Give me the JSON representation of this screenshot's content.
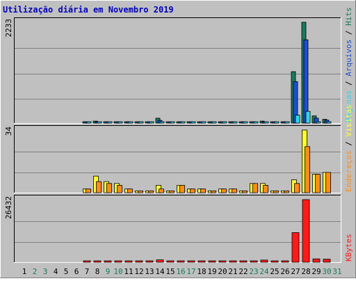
{
  "chart_data": {
    "type": "bar",
    "title": "Utilização diária em Novembro 2019",
    "categories": [
      "1",
      "2",
      "3",
      "4",
      "5",
      "6",
      "7",
      "8",
      "9",
      "10",
      "11",
      "12",
      "13",
      "14",
      "15",
      "16",
      "17",
      "18",
      "19",
      "20",
      "21",
      "22",
      "23",
      "24",
      "25",
      "26",
      "27",
      "28",
      "29",
      "30",
      "31"
    ],
    "weekend_days": [
      2,
      3,
      9,
      10,
      16,
      17,
      23,
      24,
      30,
      31
    ],
    "colors": {
      "background": "#c0c0c0",
      "title": "#0000c0",
      "hits": "#1a7a5e",
      "files": "#1a4fd6",
      "pages": "#33d4e8",
      "visits": "#ffff33",
      "sites": "#ff8c1a",
      "kbytes": "#ff1a1a",
      "weekend_label": "#1a7a5e",
      "weekday_label": "#000000"
    },
    "panels": [
      {
        "id": "top",
        "ymax_label": "2233",
        "ymax": 2233,
        "legend": [
          {
            "text": "Hits",
            "color": "#1a7a5e"
          },
          {
            "text": "Arquivos",
            "color": "#1a4fd6"
          },
          {
            "text": "Páginas",
            "color": "#33d4e8"
          }
        ],
        "series": [
          {
            "name": "Hits",
            "color": "#1a7a5e",
            "values": [
              0,
              0,
              0,
              0,
              0,
              0,
              12,
              45,
              5,
              5,
              5,
              5,
              5,
              110,
              5,
              5,
              5,
              20,
              5,
              5,
              5,
              5,
              5,
              45,
              5,
              5,
              1140,
              2233,
              160,
              85,
              0
            ]
          },
          {
            "name": "Arquivos",
            "color": "#1a4fd6",
            "values": [
              0,
              0,
              0,
              0,
              0,
              0,
              8,
              30,
              3,
              3,
              3,
              3,
              3,
              60,
              3,
              3,
              3,
              12,
              3,
              3,
              3,
              3,
              3,
              30,
              3,
              3,
              920,
              1845,
              110,
              65,
              0
            ]
          },
          {
            "name": "Páginas",
            "color": "#33d4e8",
            "values": [
              0,
              0,
              0,
              0,
              0,
              0,
              2,
              10,
              1,
              1,
              1,
              1,
              1,
              12,
              1,
              1,
              1,
              3,
              1,
              1,
              1,
              1,
              1,
              8,
              1,
              1,
              175,
              260,
              30,
              20,
              0
            ]
          }
        ]
      },
      {
        "id": "middle",
        "ymax_label": "34",
        "ymax": 34,
        "legend": [
          {
            "text": "Visitas",
            "color": "#ffff33"
          },
          {
            "text": "Endereços",
            "color": "#ff8c1a"
          }
        ],
        "series": [
          {
            "name": "Visitas",
            "color": "#ffff33",
            "values": [
              0,
              0,
              0,
              0,
              0,
              0,
              2,
              9,
              6,
              5,
              2,
              1,
              1,
              4,
              1,
              4,
              2,
              2,
              1,
              2,
              2,
              1,
              5,
              5,
              1,
              1,
              7,
              34,
              10,
              11,
              0
            ]
          },
          {
            "name": "Endereços",
            "color": "#ff8c1a",
            "values": [
              0,
              0,
              0,
              0,
              0,
              0,
              2,
              6,
              5,
              4,
              2,
              1,
              1,
              2,
              1,
              4,
              2,
              2,
              1,
              2,
              2,
              1,
              5,
              4,
              1,
              1,
              5,
              25,
              10,
              11,
              0
            ]
          }
        ]
      },
      {
        "id": "bottom",
        "ymax_label": "26432",
        "ymax": 26432,
        "legend": [
          {
            "text": "KBytes",
            "color": "#ff1a1a"
          }
        ],
        "series": [
          {
            "name": "KBytes",
            "color": "#ff1a1a",
            "values": [
              0,
              0,
              0,
              0,
              0,
              0,
              200,
              400,
              100,
              100,
              100,
              100,
              100,
              1000,
              200,
              100,
              100,
              500,
              100,
              100,
              300,
              100,
              100,
              900,
              200,
              100,
              12500,
              26432,
              1400,
              1300,
              0
            ]
          }
        ]
      }
    ]
  }
}
